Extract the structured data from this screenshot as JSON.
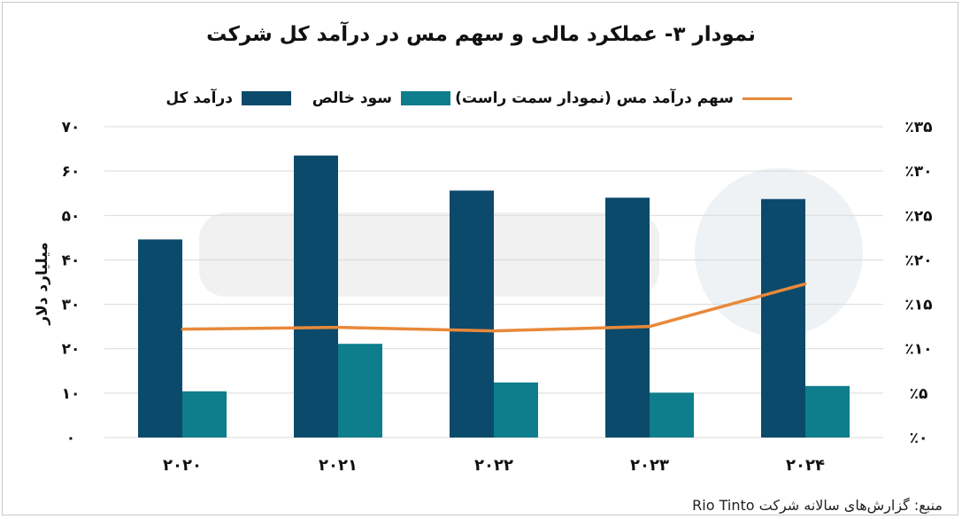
{
  "chart_data": {
    "type": "bar",
    "title": "نمودار ۳- عملکرد مالی و سهم مس در درآمد کل شرکت",
    "categories": [
      "۲۰۲۰",
      "۲۰۲۱",
      "۲۰۲۲",
      "۲۰۲۳",
      "۲۰۲۴"
    ],
    "series": [
      {
        "name": "درآمد کل",
        "type": "bar",
        "axis": "left",
        "color": "#0b4a6b",
        "values": [
          44.6,
          63.5,
          55.6,
          54.0,
          53.7
        ]
      },
      {
        "name": "سود خالص",
        "type": "bar",
        "axis": "left",
        "color": "#0e7d8c",
        "values": [
          10.4,
          21.1,
          12.4,
          10.1,
          11.6
        ]
      },
      {
        "name": "سهم درآمد مس (نمودار سمت راست)",
        "type": "line",
        "axis": "right",
        "color": "#e8893a",
        "values": [
          12.2,
          12.4,
          12.0,
          12.5,
          17.3
        ]
      }
    ],
    "ylabel": "میلیارد دلار",
    "ylim": [
      0,
      70
    ],
    "yticks": [
      "۰",
      "۱۰",
      "۲۰",
      "۳۰",
      "۴۰",
      "۵۰",
      "۶۰",
      "۷۰"
    ],
    "y2lim": [
      0,
      35
    ],
    "y2ticks": [
      "٪۰",
      "٪۵",
      "٪۱۰",
      "٪۱۵",
      "٪۲۰",
      "٪۲۵",
      "٪۳۰",
      "٪۳۵"
    ],
    "grid": true,
    "legend_position": "top"
  },
  "source": "منبع: گزارش‌های سالانه شرکت Rio Tinto"
}
